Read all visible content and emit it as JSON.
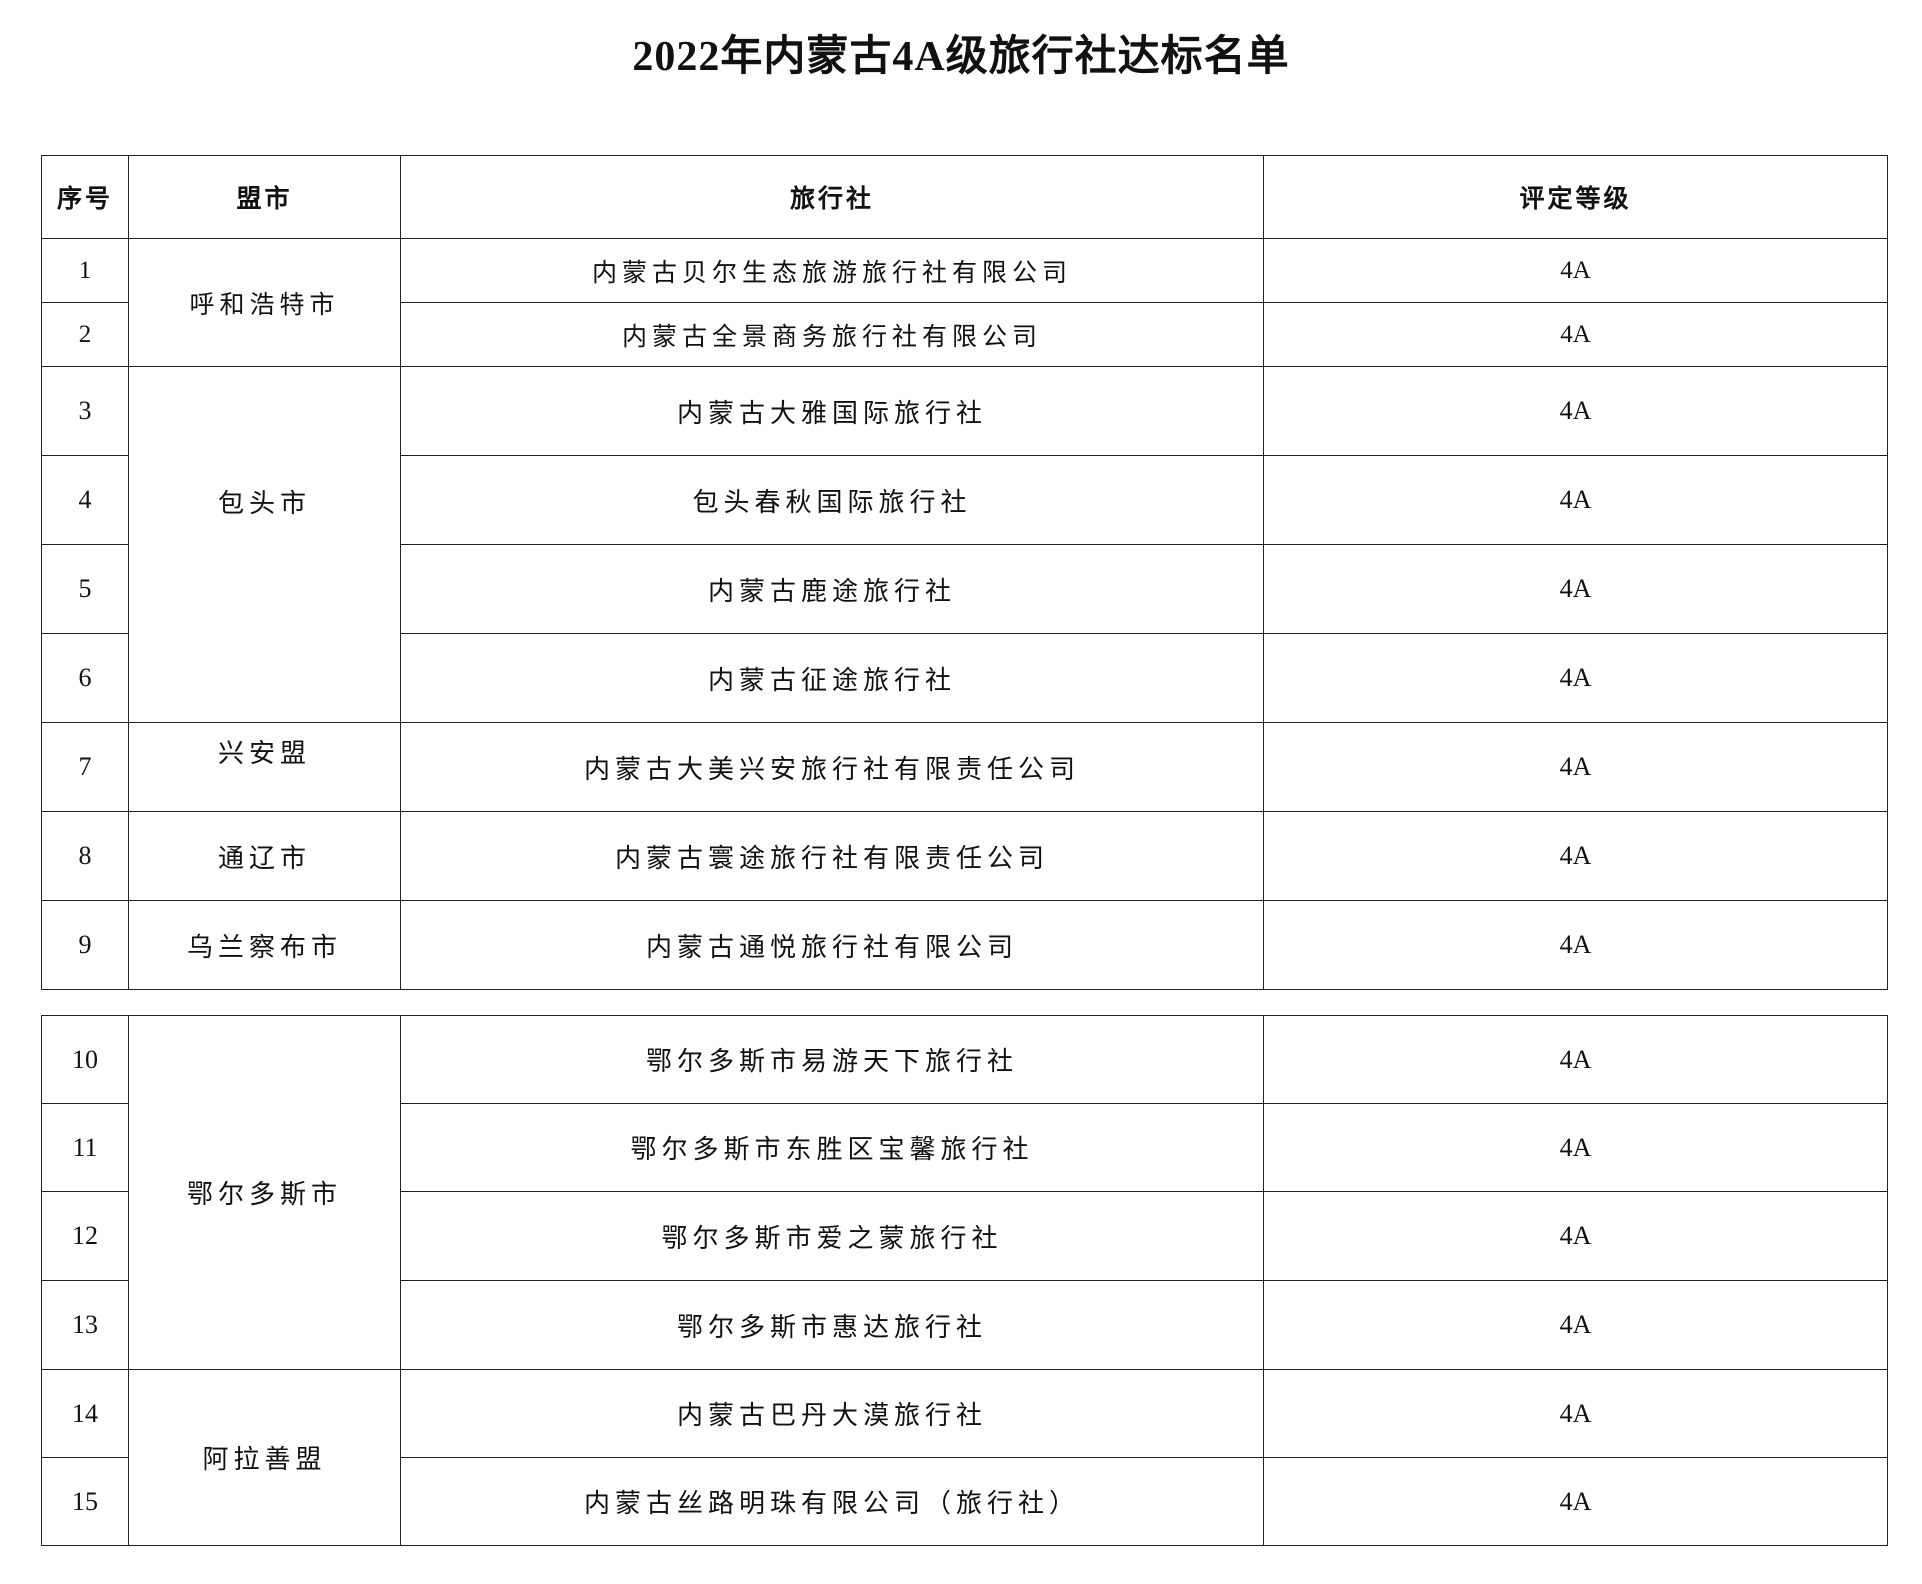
{
  "title": "2022年内蒙古4A级旅行社达标名单",
  "headers": [
    "序号",
    "盟市",
    "旅行社",
    "评定等级"
  ],
  "tables": [
    {
      "groups": [
        {
          "region": "呼和浩特市",
          "rows": [
            {
              "no": "1",
              "agency": "内蒙古贝尔生态旅游旅行社有限公司",
              "grade": "4A"
            },
            {
              "no": "2",
              "agency": "内蒙古全景商务旅行社有限公司",
              "grade": "4A"
            }
          ]
        },
        {
          "region": "包头市",
          "rows": [
            {
              "no": "3",
              "agency": "内蒙古大雅国际旅行社",
              "grade": "4A"
            },
            {
              "no": "4",
              "agency": "包头春秋国际旅行社",
              "grade": "4A"
            },
            {
              "no": "5",
              "agency": "内蒙古鹿途旅行社",
              "grade": "4A"
            },
            {
              "no": "6",
              "agency": "内蒙古征途旅行社",
              "grade": "4A"
            }
          ]
        },
        {
          "region": "兴安盟",
          "rows": [
            {
              "no": "7",
              "agency": "内蒙古大美兴安旅行社有限责任公司",
              "grade": "4A"
            }
          ]
        },
        {
          "region": "通辽市",
          "rows": [
            {
              "no": "8",
              "agency": "内蒙古寰途旅行社有限责任公司",
              "grade": "4A"
            }
          ]
        },
        {
          "region": "乌兰察布市",
          "rows": [
            {
              "no": "9",
              "agency": "内蒙古通悦旅行社有限公司",
              "grade": "4A"
            }
          ]
        }
      ]
    },
    {
      "groups": [
        {
          "region": "鄂尔多斯市",
          "rows": [
            {
              "no": "10",
              "agency": "鄂尔多斯市易游天下旅行社",
              "grade": "4A"
            },
            {
              "no": "11",
              "agency": "鄂尔多斯市东胜区宝馨旅行社",
              "grade": "4A"
            },
            {
              "no": "12",
              "agency": "鄂尔多斯市爱之蒙旅行社",
              "grade": "4A"
            },
            {
              "no": "13",
              "agency": "鄂尔多斯市惠达旅行社",
              "grade": "4A"
            }
          ]
        },
        {
          "region": "阿拉善盟",
          "rows": [
            {
              "no": "14",
              "agency": "内蒙古巴丹大漠旅行社",
              "grade": "4A"
            },
            {
              "no": "15",
              "agency": "内蒙古丝路明珠有限公司（旅行社）",
              "grade": "4A"
            }
          ]
        }
      ]
    }
  ]
}
